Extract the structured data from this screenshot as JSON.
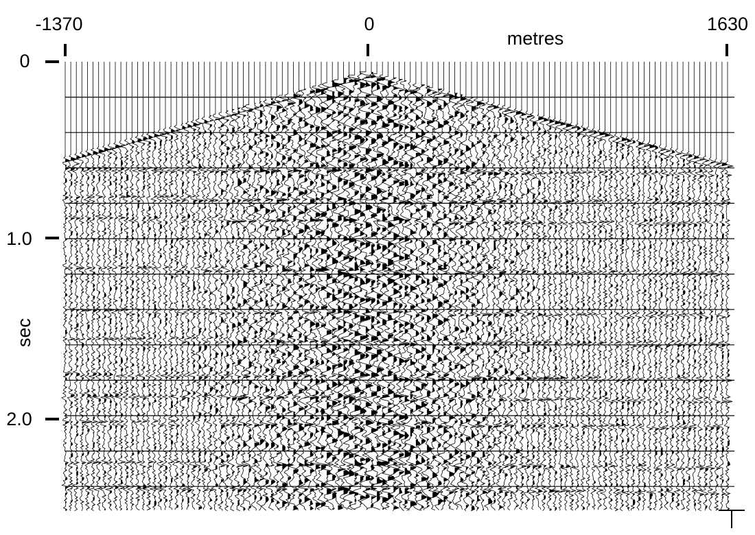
{
  "figure": {
    "description_free": true,
    "offset_axis": {
      "unit_label": "metres",
      "ticks": [
        {
          "value": -1370,
          "label": "-1370"
        },
        {
          "value": 0,
          "label": "0"
        },
        {
          "value": 1630,
          "label": "1630"
        }
      ],
      "range": [
        -1370,
        1630
      ]
    },
    "time_axis": {
      "unit_label": "sec",
      "ticks": [
        {
          "value": 0,
          "label": "0"
        },
        {
          "value": 1.0,
          "label": "1.0"
        },
        {
          "value": 2.0,
          "label": "2.0"
        }
      ],
      "range": [
        0,
        2.5
      ],
      "grid_interval_sec": 0.2
    },
    "first_break": {
      "apex_offset": 0,
      "apex_time_sec": 0.07,
      "left_end_time_sec": 0.55,
      "right_end_time_sec": 0.58
    },
    "colors": {
      "trace": "#000000",
      "grid": "#000000",
      "background": "#ffffff"
    }
  }
}
